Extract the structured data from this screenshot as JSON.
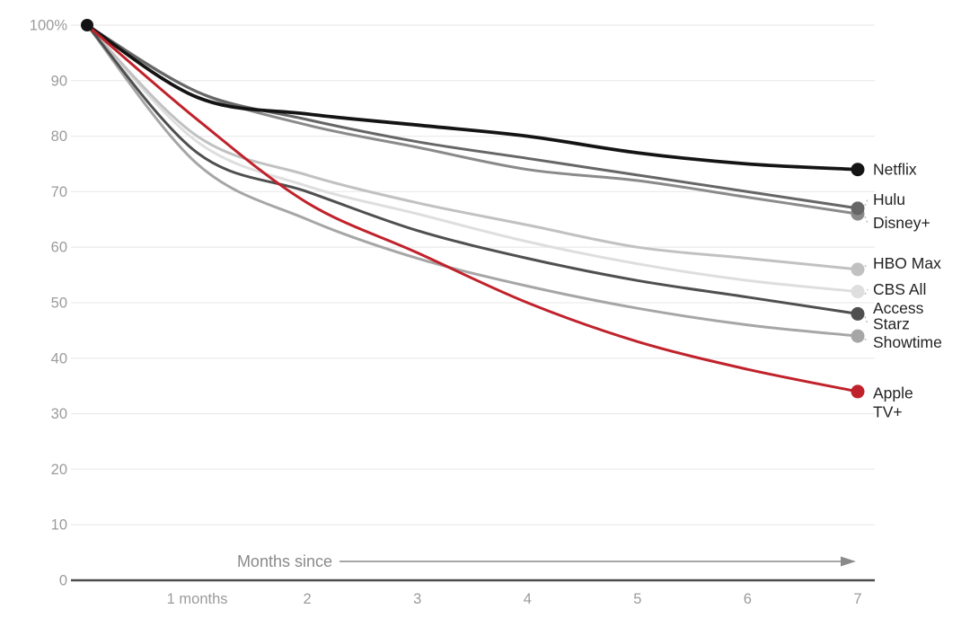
{
  "chart_data": {
    "type": "line",
    "title": "",
    "xlabel": "Months since",
    "ylabel": "",
    "ylim": [
      0,
      100
    ],
    "grid": true,
    "legend_position": "right-end-labels",
    "x": [
      0,
      1,
      2,
      3,
      4,
      5,
      6,
      7
    ],
    "x_tick_labels": [
      "1 months",
      "2",
      "3",
      "4",
      "5",
      "6",
      "7"
    ],
    "x_tick_months": [
      1,
      2,
      3,
      4,
      5,
      6,
      7
    ],
    "y_ticks": [
      {
        "value": 100,
        "label": "100%"
      },
      {
        "value": 90,
        "label": "90"
      },
      {
        "value": 80,
        "label": "80"
      },
      {
        "value": 70,
        "label": "70"
      },
      {
        "value": 60,
        "label": "60"
      },
      {
        "value": 50,
        "label": "50"
      },
      {
        "value": 40,
        "label": "40"
      },
      {
        "value": 30,
        "label": "30"
      },
      {
        "value": 20,
        "label": "20"
      },
      {
        "value": 10,
        "label": "10"
      },
      {
        "value": 0,
        "label": "0"
      }
    ],
    "series": [
      {
        "name": "CBS All Access",
        "label_lines": [
          "CBS All",
          "Access"
        ],
        "color": "#dedede",
        "values": [
          100,
          79,
          71,
          66,
          61,
          57,
          54,
          52
        ]
      },
      {
        "name": "HBO Max",
        "label_lines": [
          "HBO Max"
        ],
        "color": "#c1c1c1",
        "values": [
          100,
          80,
          73,
          68,
          64,
          60,
          58,
          56
        ]
      },
      {
        "name": "Showtime",
        "label_lines": [
          "Showtime"
        ],
        "color": "#a6a6a6",
        "values": [
          100,
          75,
          65,
          58,
          53,
          49,
          46,
          44
        ]
      },
      {
        "name": "Disney+",
        "label_lines": [
          "Disney+"
        ],
        "color": "#8a8a8a",
        "values": [
          100,
          88,
          82,
          78,
          74,
          72,
          69,
          66
        ]
      },
      {
        "name": "Hulu",
        "label_lines": [
          "Hulu"
        ],
        "color": "#666666",
        "values": [
          100,
          88,
          83,
          79,
          76,
          73,
          70,
          67
        ]
      },
      {
        "name": "Starz",
        "label_lines": [
          "Starz"
        ],
        "color": "#4f4f4f",
        "values": [
          100,
          77,
          70,
          63,
          58,
          54,
          51,
          48
        ]
      },
      {
        "name": "Netflix",
        "label_lines": [
          "Netflix"
        ],
        "color": "#141414",
        "values": [
          100,
          87,
          84,
          82,
          80,
          77,
          75,
          74
        ]
      },
      {
        "name": "Apple TV+",
        "label_lines": [
          "Apple",
          "TV+"
        ],
        "color": "#c0222b",
        "values": [
          100,
          83,
          68,
          59,
          50,
          43,
          38,
          34
        ]
      }
    ],
    "start_value_label": "100%",
    "colors": {
      "axis": "#4d4d4d",
      "gridline": "#ececec",
      "tick_text": "#9b9b9b",
      "label_text": "#232323",
      "arrow": "#8a8a8a",
      "background": "#ffffff"
    }
  }
}
